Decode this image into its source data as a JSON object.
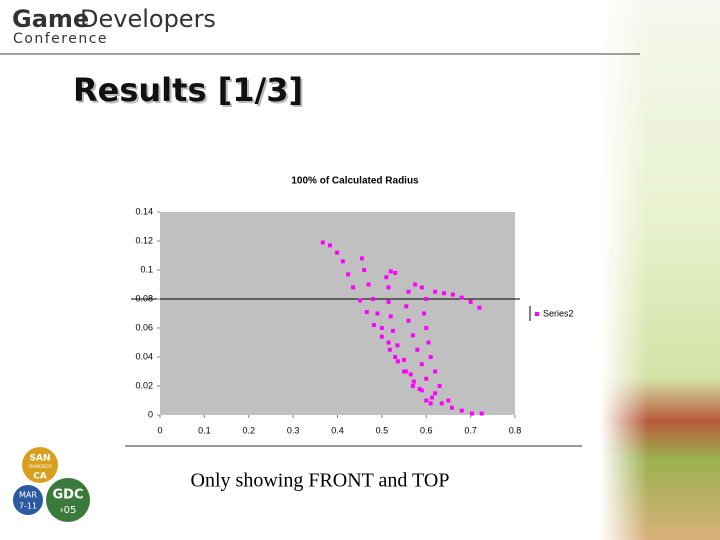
{
  "header": {
    "logo_bold": "Game",
    "logo_rest": "Developers",
    "logo_sub": "Conference"
  },
  "badge": {
    "city1": "SAN",
    "city2": "FRANCISCO",
    "state": "CA",
    "month": "MAR",
    "days": "7-11",
    "event": "GDC",
    "year": "›05"
  },
  "slide": {
    "title": "Results [1/3]",
    "caption": "Only showing FRONT and TOP"
  },
  "chart_data": {
    "type": "scatter",
    "title": "100% of Calculated Radius",
    "series": [
      {
        "name": "Series2",
        "color": "#ff00ff",
        "x": [
          0.367,
          0.383,
          0.399,
          0.412,
          0.424,
          0.435,
          0.451,
          0.466,
          0.482,
          0.5,
          0.518,
          0.536,
          0.554,
          0.572,
          0.59,
          0.613,
          0.635,
          0.658,
          0.68,
          0.703,
          0.725,
          0.455,
          0.46,
          0.47,
          0.48,
          0.49,
          0.5,
          0.515,
          0.53,
          0.55,
          0.57,
          0.6,
          0.51,
          0.52,
          0.53,
          0.515,
          0.515,
          0.52,
          0.525,
          0.535,
          0.55,
          0.565,
          0.585,
          0.61,
          0.56,
          0.575,
          0.59,
          0.555,
          0.56,
          0.57,
          0.58,
          0.59,
          0.6,
          0.62,
          0.6,
          0.62,
          0.64,
          0.66,
          0.68,
          0.7,
          0.72,
          0.595,
          0.6,
          0.605,
          0.61,
          0.62,
          0.63,
          0.65
        ],
        "values": [
          0.119,
          0.117,
          0.112,
          0.106,
          0.097,
          0.088,
          0.079,
          0.071,
          0.062,
          0.054,
          0.045,
          0.037,
          0.03,
          0.023,
          0.017,
          0.012,
          0.008,
          0.005,
          0.003,
          0.001,
          0.001,
          0.108,
          0.1,
          0.09,
          0.08,
          0.07,
          0.06,
          0.05,
          0.04,
          0.03,
          0.02,
          0.01,
          0.095,
          0.099,
          0.098,
          0.088,
          0.078,
          0.068,
          0.058,
          0.048,
          0.038,
          0.028,
          0.018,
          0.008,
          0.085,
          0.09,
          0.088,
          0.075,
          0.065,
          0.055,
          0.045,
          0.035,
          0.025,
          0.015,
          0.08,
          0.085,
          0.084,
          0.083,
          0.081,
          0.078,
          0.074,
          0.07,
          0.06,
          0.05,
          0.04,
          0.03,
          0.02,
          0.01
        ]
      }
    ],
    "xlim": [
      0,
      0.8
    ],
    "xticks": [
      0,
      0.1,
      0.2,
      0.3,
      0.4,
      0.5,
      0.6,
      0.7,
      0.8
    ],
    "ylim": [
      0,
      0.14
    ],
    "yticks": [
      0,
      0.02,
      0.04,
      0.06,
      0.08,
      0.1,
      0.12,
      0.14
    ],
    "grid": false,
    "legend": "right"
  }
}
